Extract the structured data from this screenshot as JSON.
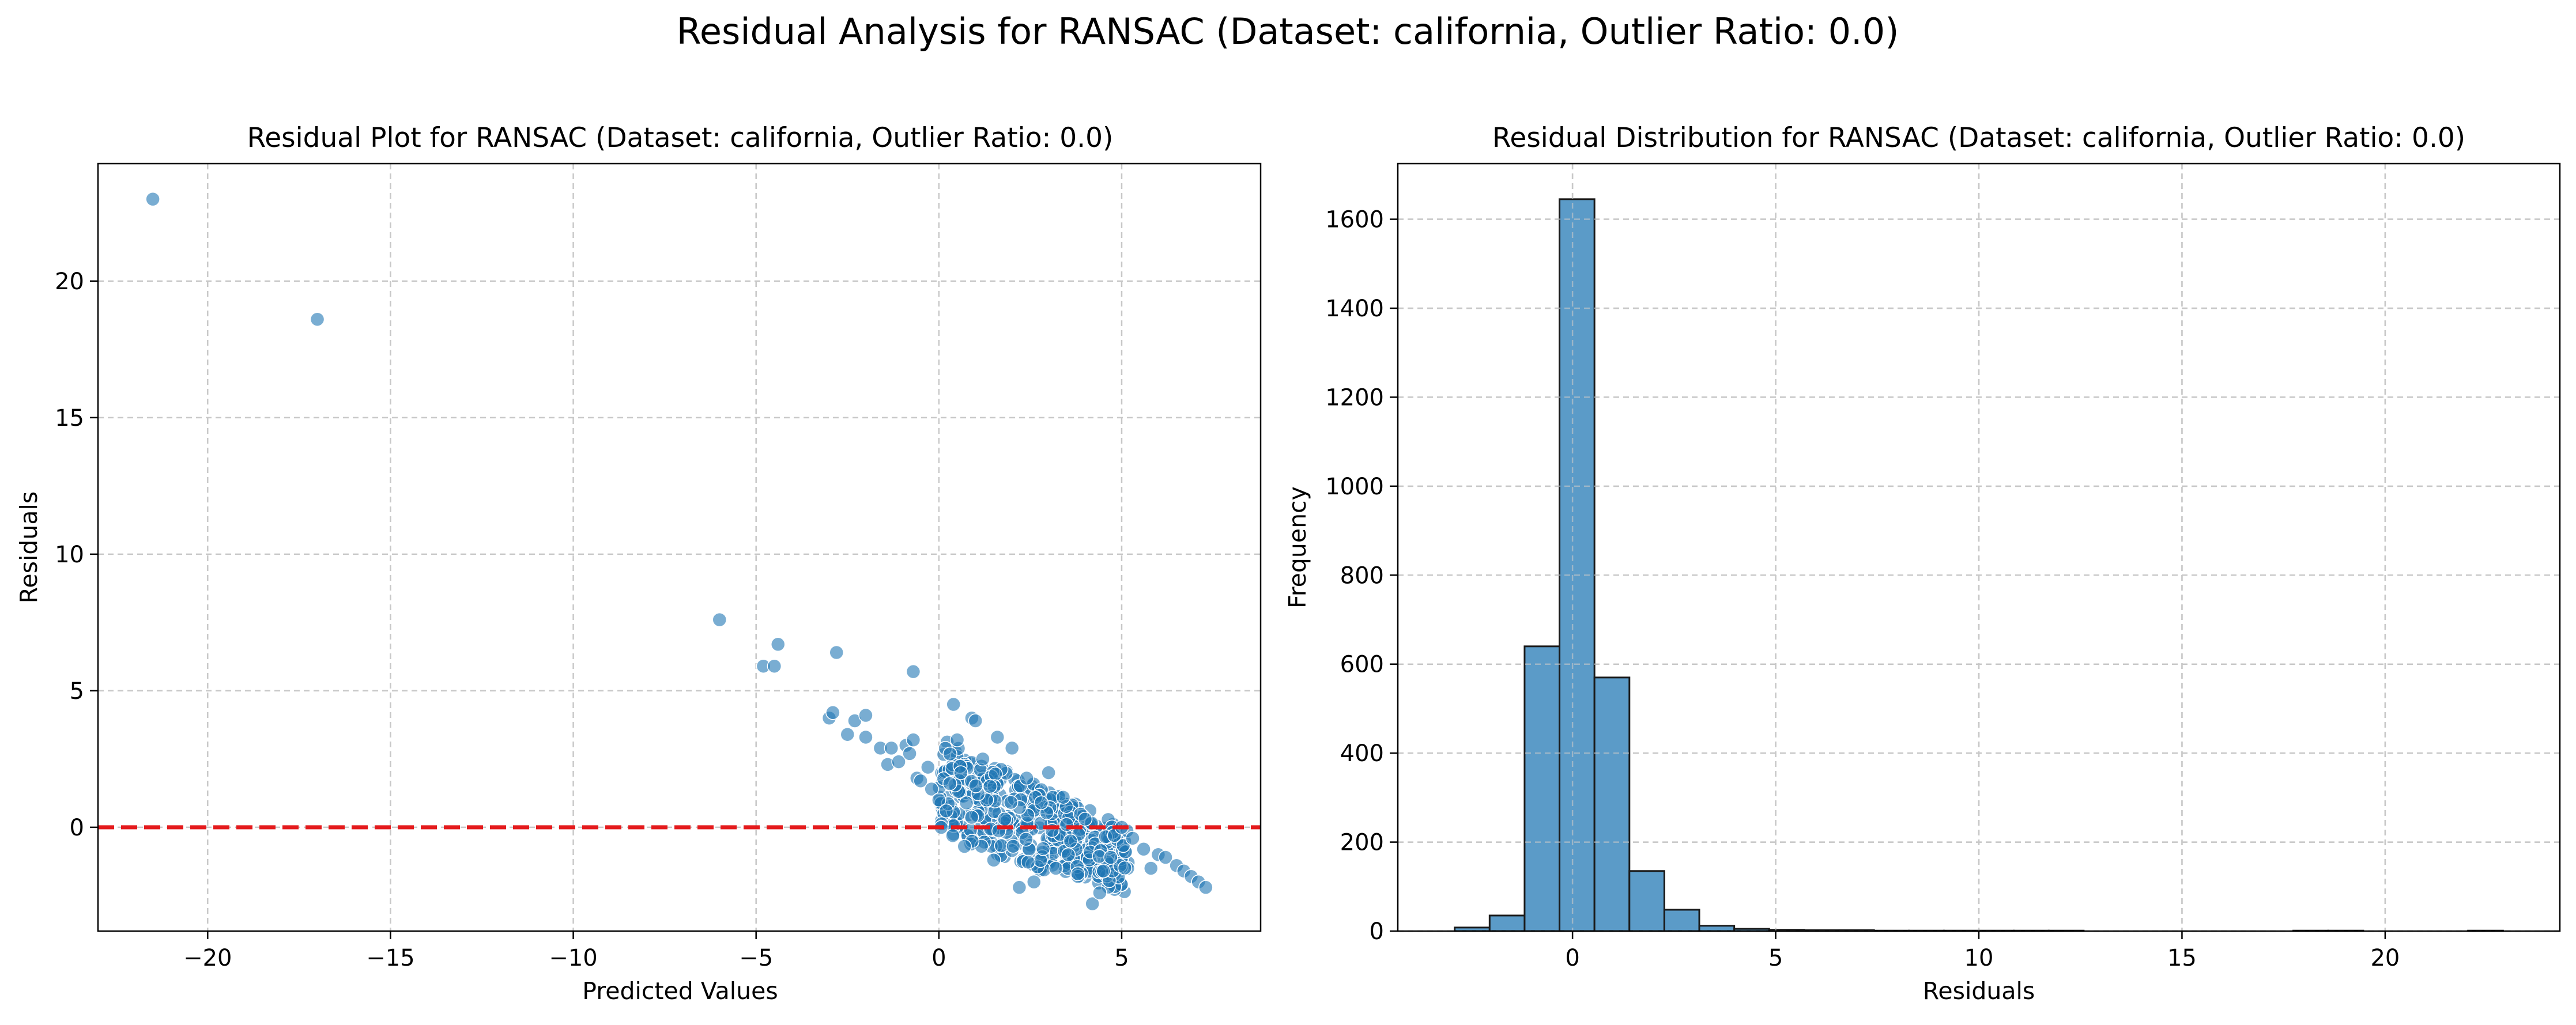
{
  "suptitle": "Residual Analysis for RANSAC (Dataset: california, Outlier Ratio: 0.0)",
  "colors": {
    "point": "#1f77b4",
    "bar": "#5b9bc8",
    "zero_line": "#e41a1c",
    "grid": "#c8c8c8"
  },
  "chart_data": [
    {
      "type": "scatter",
      "title": "Residual Plot for RANSAC (Dataset: california, Outlier Ratio: 0.0)",
      "xlabel": "Predicted Values",
      "ylabel": "Residuals",
      "xlim": [
        -23,
        8.8
      ],
      "ylim": [
        -3.8,
        24.3
      ],
      "xticks": [
        -20,
        -15,
        -10,
        -5,
        0,
        5
      ],
      "yticks": [
        0,
        5,
        10,
        15,
        20
      ],
      "grid": true,
      "reference_line": {
        "y": 0,
        "style": "dashed"
      },
      "points": [
        [
          -21.5,
          23.0
        ],
        [
          -17.0,
          18.6
        ],
        [
          -6.0,
          7.6
        ],
        [
          -4.8,
          5.9
        ],
        [
          -4.5,
          5.9
        ],
        [
          -4.4,
          6.7
        ],
        [
          -2.8,
          6.4
        ],
        [
          -0.7,
          5.7
        ],
        [
          -3.0,
          4.0
        ],
        [
          -2.9,
          4.2
        ],
        [
          -2.5,
          3.4
        ],
        [
          -2.3,
          3.9
        ],
        [
          -2.0,
          4.1
        ],
        [
          -2.0,
          3.3
        ],
        [
          -1.6,
          2.9
        ],
        [
          -1.4,
          2.3
        ],
        [
          -1.3,
          2.9
        ],
        [
          -1.1,
          2.4
        ],
        [
          -0.9,
          3.0
        ],
        [
          -0.8,
          2.7
        ],
        [
          -0.7,
          3.2
        ],
        [
          -0.6,
          1.8
        ],
        [
          -0.5,
          1.7
        ],
        [
          -0.3,
          2.2
        ],
        [
          -0.2,
          1.4
        ],
        [
          0.0,
          1.0
        ],
        [
          0.2,
          0.6
        ],
        [
          0.3,
          1.6
        ],
        [
          0.4,
          4.5
        ],
        [
          0.5,
          3.2
        ],
        [
          0.6,
          2.0
        ],
        [
          0.7,
          -0.7
        ],
        [
          0.9,
          4.0
        ],
        [
          1.0,
          3.9
        ],
        [
          1.2,
          2.5
        ],
        [
          1.4,
          1.5
        ],
        [
          1.5,
          -1.2
        ],
        [
          1.6,
          3.3
        ],
        [
          1.8,
          0.3
        ],
        [
          2.0,
          2.9
        ],
        [
          2.2,
          -2.2
        ],
        [
          2.4,
          1.8
        ],
        [
          2.6,
          -2.0
        ],
        [
          2.8,
          0.9
        ],
        [
          3.0,
          2.0
        ],
        [
          3.2,
          -1.5
        ],
        [
          3.4,
          1.1
        ],
        [
          3.6,
          -0.5
        ],
        [
          3.8,
          -1.7
        ],
        [
          4.0,
          0.3
        ],
        [
          4.2,
          -2.8
        ],
        [
          4.4,
          -2.4
        ],
        [
          4.5,
          -1.6
        ],
        [
          4.7,
          -1.1
        ],
        [
          4.8,
          -0.3
        ],
        [
          5.0,
          0.0
        ],
        [
          5.3,
          -0.4
        ],
        [
          5.6,
          -0.8
        ],
        [
          5.8,
          -1.5
        ],
        [
          6.0,
          -1.0
        ],
        [
          6.2,
          -1.1
        ],
        [
          6.5,
          -1.4
        ],
        [
          6.7,
          -1.6
        ],
        [
          6.9,
          -1.8
        ],
        [
          7.1,
          -2.0
        ],
        [
          7.3,
          -2.2
        ]
      ],
      "dense_band": {
        "x_from": 0.0,
        "x_to": 5.2,
        "points": 420
      }
    },
    {
      "type": "bar",
      "title": "Residual Distribution for RANSAC (Dataset: california, Outlier Ratio: 0.0)",
      "xlabel": "Residuals",
      "ylabel": "Frequency",
      "xlim": [
        -4.3,
        24.3
      ],
      "ylim": [
        0,
        1725
      ],
      "xticks": [
        0,
        5,
        10,
        15,
        20
      ],
      "yticks": [
        0,
        200,
        400,
        600,
        800,
        1000,
        1200,
        1400,
        1600
      ],
      "grid": true,
      "bin_start": -2.9,
      "bin_width": 0.86,
      "values": [
        8,
        35,
        640,
        1645,
        570,
        135,
        48,
        12,
        5,
        3,
        2,
        2,
        1,
        1,
        1,
        1,
        1,
        1,
        0,
        0,
        0,
        0,
        0,
        0,
        1,
        1,
        0,
        0,
        0,
        1
      ]
    }
  ]
}
